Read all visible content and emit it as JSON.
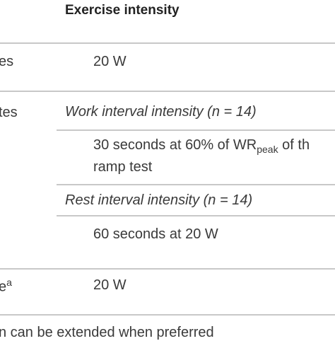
{
  "header": {
    "col2": "Exercise intensity"
  },
  "rows": [
    {
      "left_fragment": "es",
      "value": "20 W"
    },
    {
      "left_fragment": "tes",
      "work_heading": "Work interval intensity (n = 14)",
      "work_value_prefix": "30 seconds at 60% of WR",
      "work_value_sub": "peak",
      "work_value_suffix": " of th",
      "work_value_line2": "ramp test",
      "rest_heading": "Rest interval intensity (n = 14)",
      "rest_value": "60 seconds at 20 W"
    },
    {
      "left_fragment": "e",
      "left_sup": "a",
      "value": "20 W"
    }
  ],
  "footnote": "n can be extended when preferred"
}
